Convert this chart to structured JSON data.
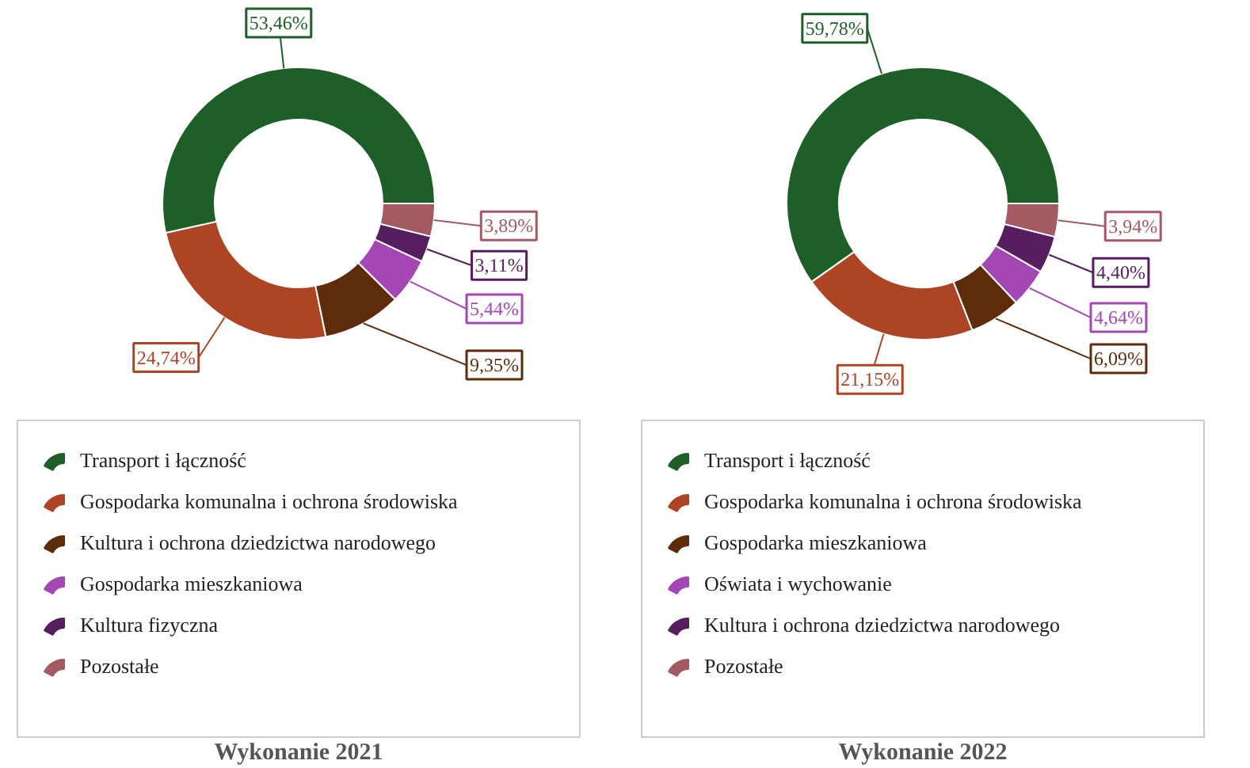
{
  "chart_data": [
    {
      "type": "donut",
      "title": "Wykonanie 2021",
      "categories": [
        "Transport i łączność",
        "Gospodarka komunalna i ochrona środowiska",
        "Kultura i ochrona dziedzictwa narodowego",
        "Gospodarka mieszkaniowa",
        "Kultura fizyczna",
        "Pozostałe"
      ],
      "values": [
        53.46,
        24.74,
        9.35,
        5.44,
        3.11,
        3.89
      ],
      "value_labels": [
        "53,46%",
        "24,74%",
        "9,35%",
        "5,44%",
        "3,11%",
        "3,89%"
      ],
      "colors": [
        "#1e5e28",
        "#ad4424",
        "#5e2c0a",
        "#a447b5",
        "#561e5e",
        "#a35a62"
      ],
      "legend": "bottom"
    },
    {
      "type": "donut",
      "title": "Wykonanie 2022",
      "categories": [
        "Transport i łączność",
        "Gospodarka komunalna i ochrona środowiska",
        "Gospodarka mieszkaniowa",
        "Oświata i wychowanie",
        "Kultura i ochrona dziedzictwa narodowego",
        "Pozostałe"
      ],
      "values": [
        59.78,
        21.15,
        6.09,
        4.64,
        4.4,
        3.94
      ],
      "value_labels": [
        "59,78%",
        "21,15%",
        "6,09%",
        "4,64%",
        "4,40%",
        "3,94%"
      ],
      "colors": [
        "#1e5e28",
        "#ad4424",
        "#5e2c0a",
        "#a447b5",
        "#561e5e",
        "#a35a62"
      ],
      "legend": "bottom"
    }
  ]
}
